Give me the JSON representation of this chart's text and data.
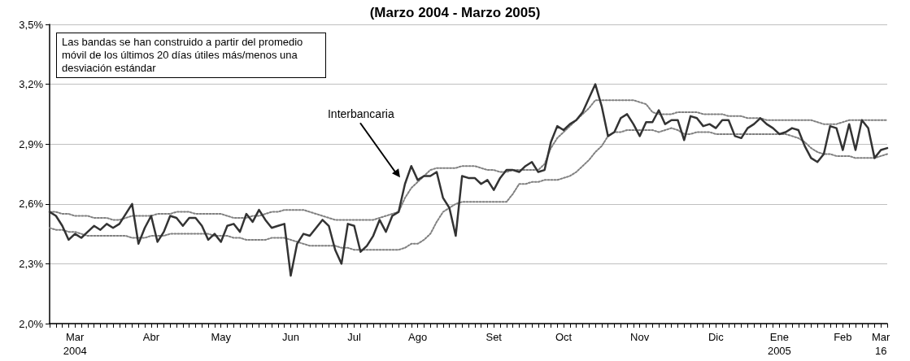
{
  "chart_data": {
    "type": "line",
    "title": "(Marzo 2004 - Marzo 2005)",
    "categories": [
      null,
      null,
      null,
      null,
      "Mar\n2004",
      null,
      null,
      null,
      null,
      null,
      null,
      null,
      null,
      null,
      null,
      null,
      "Abr",
      null,
      null,
      null,
      null,
      null,
      null,
      null,
      null,
      null,
      null,
      "May",
      null,
      null,
      null,
      null,
      null,
      null,
      null,
      null,
      null,
      null,
      "Jun",
      null,
      null,
      null,
      null,
      null,
      null,
      null,
      null,
      null,
      "Jul",
      null,
      null,
      null,
      null,
      null,
      null,
      null,
      null,
      null,
      "Ago",
      null,
      null,
      null,
      null,
      null,
      null,
      null,
      null,
      null,
      null,
      null,
      "Set",
      null,
      null,
      null,
      null,
      null,
      null,
      null,
      null,
      null,
      null,
      "Oct",
      null,
      null,
      null,
      null,
      null,
      null,
      null,
      null,
      null,
      null,
      null,
      "Nov",
      null,
      null,
      null,
      null,
      null,
      null,
      null,
      null,
      null,
      null,
      null,
      "Dic",
      null,
      null,
      null,
      null,
      null,
      null,
      null,
      null,
      null,
      "Ene\n2005",
      null,
      null,
      null,
      null,
      null,
      null,
      null,
      null,
      null,
      "Feb",
      null,
      null,
      null,
      null,
      null,
      "Mar\n16",
      null
    ],
    "series": [
      {
        "name": "Interbancaria",
        "color": "#333333",
        "line_style": "solid",
        "values": [
          2.56,
          2.54,
          2.49,
          2.42,
          2.45,
          2.43,
          2.46,
          2.49,
          2.47,
          2.5,
          2.48,
          2.5,
          2.55,
          2.6,
          2.4,
          2.48,
          2.54,
          2.41,
          2.46,
          2.54,
          2.53,
          2.49,
          2.53,
          2.53,
          2.49,
          2.42,
          2.45,
          2.41,
          2.49,
          2.5,
          2.46,
          2.55,
          2.51,
          2.57,
          2.52,
          2.48,
          2.49,
          2.5,
          2.24,
          2.4,
          2.45,
          2.44,
          2.48,
          2.52,
          2.49,
          2.37,
          2.3,
          2.5,
          2.49,
          2.36,
          2.39,
          2.44,
          2.52,
          2.46,
          2.54,
          2.56,
          2.7,
          2.79,
          2.72,
          2.74,
          2.74,
          2.76,
          2.63,
          2.58,
          2.44,
          2.74,
          2.73,
          2.73,
          2.7,
          2.72,
          2.67,
          2.73,
          2.77,
          2.77,
          2.76,
          2.79,
          2.81,
          2.76,
          2.77,
          2.91,
          2.99,
          2.97,
          3.0,
          3.02,
          3.06,
          3.13,
          3.2,
          3.09,
          2.94,
          2.96,
          3.03,
          3.05,
          3.0,
          2.94,
          3.01,
          3.01,
          3.07,
          3.0,
          3.02,
          3.02,
          2.92,
          3.04,
          3.03,
          2.99,
          3.0,
          2.98,
          3.02,
          3.02,
          2.94,
          2.93,
          2.98,
          3.0,
          3.03,
          3.0,
          2.98,
          2.95,
          2.96,
          2.98,
          2.97,
          2.89,
          2.83,
          2.81,
          2.85,
          2.99,
          2.98,
          2.87,
          3.0,
          2.87,
          3.02,
          2.98,
          2.83,
          2.87,
          2.88
        ]
      },
      {
        "color": "#808080",
        "line_style": "dotted",
        "values": [
          2.56,
          2.56,
          2.55,
          2.55,
          2.54,
          2.54,
          2.54,
          2.53,
          2.53,
          2.53,
          2.52,
          2.52,
          2.53,
          2.54,
          2.54,
          2.54,
          2.54,
          2.55,
          2.55,
          2.55,
          2.56,
          2.56,
          2.56,
          2.55,
          2.55,
          2.55,
          2.55,
          2.55,
          2.54,
          2.53,
          2.53,
          2.53,
          2.54,
          2.54,
          2.55,
          2.56,
          2.56,
          2.57,
          2.57,
          2.57,
          2.57,
          2.56,
          2.55,
          2.54,
          2.53,
          2.52,
          2.52,
          2.52,
          2.52,
          2.52,
          2.52,
          2.52,
          2.53,
          2.54,
          2.55,
          2.56,
          2.63,
          2.68,
          2.71,
          2.74,
          2.77,
          2.78,
          2.78,
          2.78,
          2.78,
          2.79,
          2.79,
          2.79,
          2.78,
          2.77,
          2.77,
          2.76,
          2.76,
          2.77,
          2.77,
          2.77,
          2.77,
          2.77,
          2.8,
          2.88,
          2.93,
          2.96,
          2.99,
          3.02,
          3.05,
          3.08,
          3.12,
          3.12,
          3.12,
          3.12,
          3.12,
          3.12,
          3.12,
          3.11,
          3.1,
          3.06,
          3.05,
          3.05,
          3.05,
          3.06,
          3.06,
          3.06,
          3.06,
          3.05,
          3.05,
          3.05,
          3.05,
          3.04,
          3.04,
          3.04,
          3.03,
          3.03,
          3.03,
          3.02,
          3.02,
          3.02,
          3.02,
          3.02,
          3.02,
          3.02,
          3.02,
          3.01,
          3.0,
          3.0,
          3.0,
          3.01,
          3.02,
          3.02,
          3.02,
          3.02,
          3.02,
          3.02,
          3.02
        ]
      },
      {
        "color": "#808080",
        "line_style": "dotted",
        "values": [
          2.48,
          2.47,
          2.47,
          2.46,
          2.46,
          2.45,
          2.44,
          2.44,
          2.44,
          2.44,
          2.44,
          2.44,
          2.44,
          2.43,
          2.43,
          2.43,
          2.44,
          2.44,
          2.44,
          2.45,
          2.45,
          2.45,
          2.45,
          2.45,
          2.45,
          2.45,
          2.44,
          2.44,
          2.44,
          2.43,
          2.43,
          2.42,
          2.42,
          2.42,
          2.42,
          2.43,
          2.43,
          2.43,
          2.42,
          2.41,
          2.4,
          2.39,
          2.39,
          2.39,
          2.39,
          2.39,
          2.38,
          2.38,
          2.37,
          2.37,
          2.37,
          2.37,
          2.37,
          2.37,
          2.37,
          2.37,
          2.38,
          2.4,
          2.4,
          2.42,
          2.45,
          2.51,
          2.56,
          2.58,
          2.6,
          2.61,
          2.61,
          2.61,
          2.61,
          2.61,
          2.61,
          2.61,
          2.61,
          2.65,
          2.7,
          2.7,
          2.71,
          2.71,
          2.72,
          2.72,
          2.72,
          2.73,
          2.74,
          2.76,
          2.79,
          2.82,
          2.86,
          2.89,
          2.94,
          2.96,
          2.96,
          2.97,
          2.97,
          2.97,
          2.97,
          2.97,
          2.96,
          2.97,
          2.98,
          2.97,
          2.95,
          2.95,
          2.96,
          2.96,
          2.96,
          2.95,
          2.95,
          2.95,
          2.95,
          2.95,
          2.95,
          2.95,
          2.95,
          2.95,
          2.95,
          2.95,
          2.95,
          2.94,
          2.93,
          2.91,
          2.88,
          2.86,
          2.85,
          2.85,
          2.84,
          2.84,
          2.84,
          2.83,
          2.83,
          2.83,
          2.83,
          2.84,
          2.85
        ]
      }
    ],
    "ylim": [
      2.0,
      3.5
    ],
    "yticks": [
      {
        "value": 2.0,
        "label": "2,0%"
      },
      {
        "value": 2.3,
        "label": "2,3%"
      },
      {
        "value": 2.6,
        "label": "2,6%"
      },
      {
        "value": 2.9,
        "label": "2,9%"
      },
      {
        "value": 3.2,
        "label": "3,2%"
      },
      {
        "value": 3.5,
        "label": "3,5%"
      }
    ],
    "grid": "y",
    "legend": false,
    "marker": "none",
    "annotations": [
      "Las bandas se han construido a partir del promedio móvil de los últimos 20 días útiles más/menos una desviación estándar"
    ]
  }
}
